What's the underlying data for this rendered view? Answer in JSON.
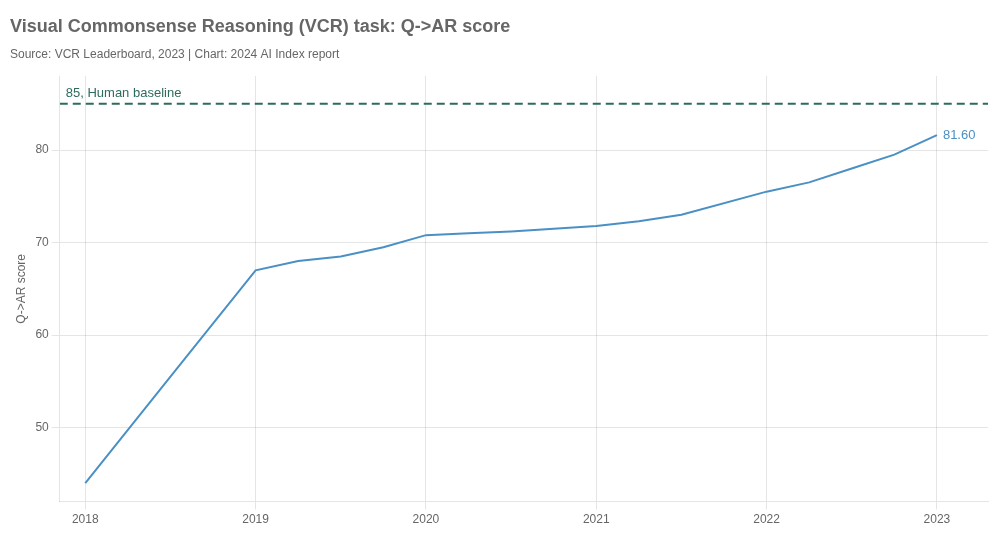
{
  "chart_data": {
    "type": "line",
    "title": "Visual Commonsense Reasoning (VCR) task: Q->AR score",
    "subtitle": "Source: VCR Leaderboard, 2023 | Chart: 2024 AI Index report",
    "ylabel": "Q->AR score",
    "x": [
      2018,
      2018.5,
      2019,
      2019.25,
      2019.5,
      2019.75,
      2020,
      2020.25,
      2020.5,
      2021,
      2021.25,
      2021.5,
      2022,
      2022.25,
      2022.5,
      2022.75,
      2023
    ],
    "values": [
      44.0,
      55.5,
      67.0,
      68.0,
      68.5,
      69.5,
      70.8,
      71.0,
      71.2,
      71.8,
      72.3,
      73.0,
      75.5,
      76.5,
      78.0,
      79.5,
      81.6
    ],
    "color": "#4a90c4",
    "xlim": [
      2017.85,
      2023.3
    ],
    "xticks": [
      2018,
      2019,
      2020,
      2021,
      2022,
      2023
    ],
    "ylim": [
      42,
      88
    ],
    "yticks": [
      50,
      60,
      70,
      80
    ],
    "grid": true,
    "reference_lines": [
      {
        "value": 85,
        "label": "85, Human baseline",
        "color": "#2e6b5e",
        "line_style": "dashed"
      }
    ],
    "annotations": [
      {
        "x": 2023,
        "y": 81.6,
        "text": "81.60",
        "color": "#4a90c4"
      }
    ]
  }
}
